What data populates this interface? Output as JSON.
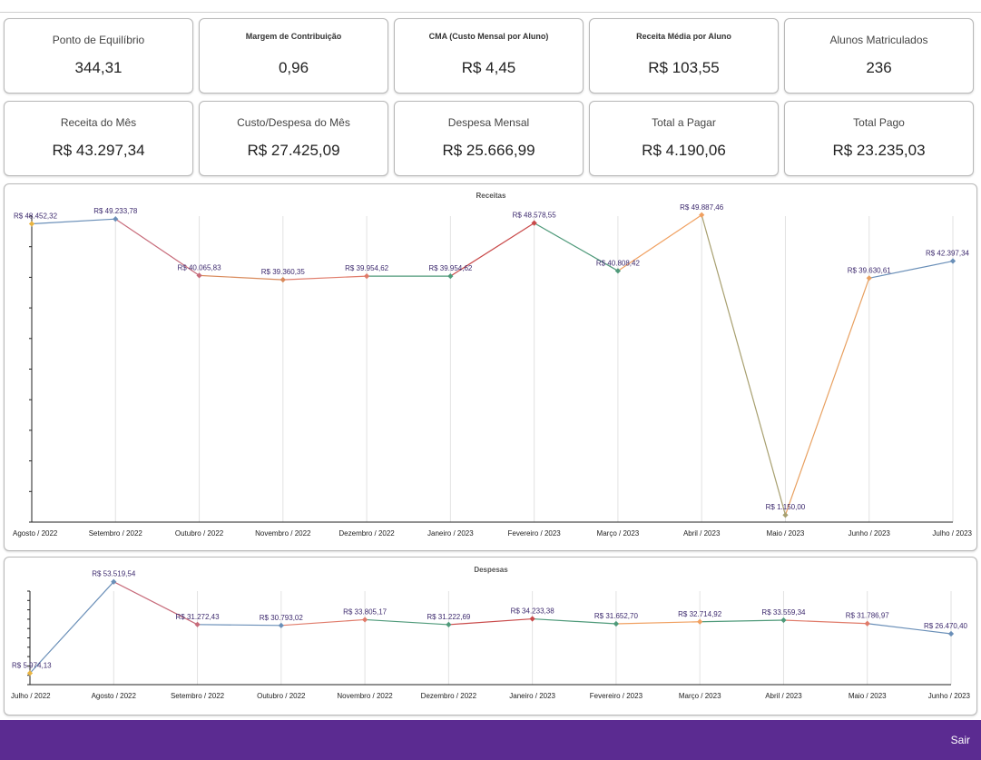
{
  "kpis_row1": [
    {
      "label": "Ponto de Equilíbrio",
      "value": "344,31",
      "small": false
    },
    {
      "label": "Margem de Contribuição",
      "value": "0,96",
      "small": true
    },
    {
      "label": "CMA (Custo Mensal por Aluno)",
      "value": "R$ 4,45",
      "small": true
    },
    {
      "label": "Receita Média por Aluno",
      "value": "R$ 103,55",
      "small": true
    },
    {
      "label": "Alunos Matriculados",
      "value": "236",
      "small": false
    }
  ],
  "kpis_row2": [
    {
      "label": "Receita do Mês",
      "value": "R$ 43.297,34",
      "small": false
    },
    {
      "label": "Custo/Despesa do Mês",
      "value": "R$ 27.425,09",
      "small": false
    },
    {
      "label": "Despesa Mensal",
      "value": "R$ 25.666,99",
      "small": false
    },
    {
      "label": "Total a Pagar",
      "value": "R$ 4.190,06",
      "small": false
    },
    {
      "label": "Total Pago",
      "value": "R$ 23.235,03",
      "small": false
    }
  ],
  "chart_data": [
    {
      "type": "line",
      "title": "Receitas",
      "categories": [
        "Agosto / 2022",
        "Setembro / 2022",
        "Outubro / 2022",
        "Novembro / 2022",
        "Dezembro / 2022",
        "Janeiro / 2023",
        "Fevereiro / 2023",
        "Março / 2023",
        "Abril / 2023",
        "Maio / 2023",
        "Junho / 2023",
        "Julho / 2023"
      ],
      "values": [
        48452.32,
        49233.78,
        40065.83,
        39360.35,
        39954.62,
        39954.62,
        48578.55,
        40808.42,
        49887.46,
        1150.0,
        39630.61,
        42397.34
      ],
      "labels": [
        "R$ 48.452,32",
        "R$ 49.233,78",
        "R$ 40.065,83",
        "R$ 39.360,35",
        "R$ 39.954,62",
        "R$ 39.954,62",
        "R$ 48.578,55",
        "R$ 40.808,42",
        "R$ 49.887,46",
        "R$ 1.150,00",
        "R$ 39.630,61",
        "R$ 42.397,34"
      ],
      "ylim": [
        0,
        50000
      ],
      "grid": true,
      "colors": [
        "#e8b440",
        "#6a8fb8",
        "#c76b7a",
        "#d98a5b",
        "#e07b6a",
        "#4f9a7a",
        "#c94a4a",
        "#4f9a7a",
        "#f0a060",
        "#a8a070",
        "#e8a060",
        "#6a8fb8"
      ]
    },
    {
      "type": "line",
      "title": "Despesas",
      "categories": [
        "Julho / 2022",
        "Agosto / 2022",
        "Setembro / 2022",
        "Outubro / 2022",
        "Novembro / 2022",
        "Dezembro / 2022",
        "Janeiro / 2023",
        "Fevereiro / 2023",
        "Março / 2023",
        "Abril / 2023",
        "Maio / 2023",
        "Junho / 2023"
      ],
      "values": [
        5974.13,
        53519.54,
        31272.43,
        30793.02,
        33805.17,
        31222.69,
        34233.38,
        31652.7,
        32714.92,
        33559.34,
        31786.97,
        26470.4
      ],
      "labels": [
        "R$ 5.974,13",
        "R$ 53.519,54",
        "R$ 31.272,43",
        "R$ 30.793,02",
        "R$ 33.805,17",
        "R$ 31.222,69",
        "R$ 34.233,38",
        "R$ 31.652,70",
        "R$ 32.714,92",
        "R$ 33.559,34",
        "R$ 31.786,97",
        "R$ 26.470,40"
      ],
      "ylim": [
        0,
        60000
      ],
      "grid": true,
      "colors": [
        "#e8b440",
        "#6a8fb8",
        "#c76b7a",
        "#6a8fb8",
        "#e07b6a",
        "#4f9a7a",
        "#c94a4a",
        "#4f9a7a",
        "#f0a060",
        "#4f9a7a",
        "#e07b6a",
        "#6a8fb8"
      ]
    }
  ],
  "footer": {
    "logout_label": "Sair"
  }
}
